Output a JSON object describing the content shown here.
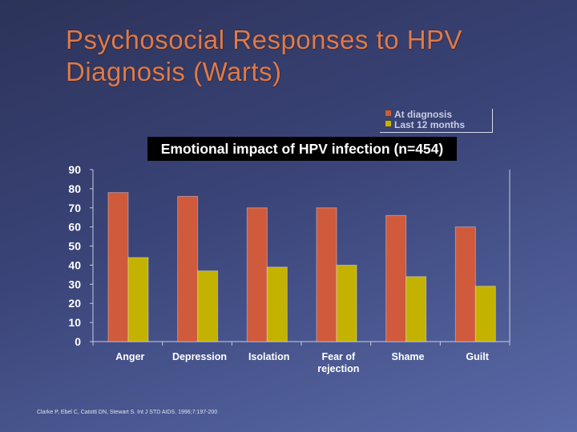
{
  "slide": {
    "title": "Psychosocial Responses to HPV Diagnosis (Warts)",
    "citation": "Clarke P, Ebel C, Catotti DN, Stewart S. Int J STD AIDS. 1996;7:197-200"
  },
  "legend": {
    "at_diagnosis": "At diagnosis",
    "last_12_months": "Last 12 months"
  },
  "colors": {
    "at_diagnosis": "#cf5a3c",
    "last_12_months": "#c4b200",
    "axis_text": "#ffffff",
    "axis_line": "#c8cbe0"
  },
  "chart_data": {
    "type": "bar",
    "title": "Emotional impact of HPV infection (n=454)",
    "xlabel": "",
    "ylabel": "",
    "ylim": [
      0,
      90
    ],
    "yticks": [
      0,
      10,
      20,
      30,
      40,
      50,
      60,
      70,
      80,
      90
    ],
    "categories": [
      "Anger",
      "Depression",
      "Isolation",
      "Fear of rejection",
      "Shame",
      "Guilt"
    ],
    "category_lines": [
      [
        "Anger"
      ],
      [
        "Depression"
      ],
      [
        "Isolation"
      ],
      [
        "Fear of",
        "rejection"
      ],
      [
        "Shame"
      ],
      [
        "Guilt"
      ]
    ],
    "series": [
      {
        "name": "At diagnosis",
        "values": [
          78,
          76,
          70,
          70,
          66,
          60
        ]
      },
      {
        "name": "Last 12 months",
        "values": [
          44,
          37,
          39,
          40,
          34,
          29
        ]
      }
    ],
    "legend_position": "top-right"
  }
}
